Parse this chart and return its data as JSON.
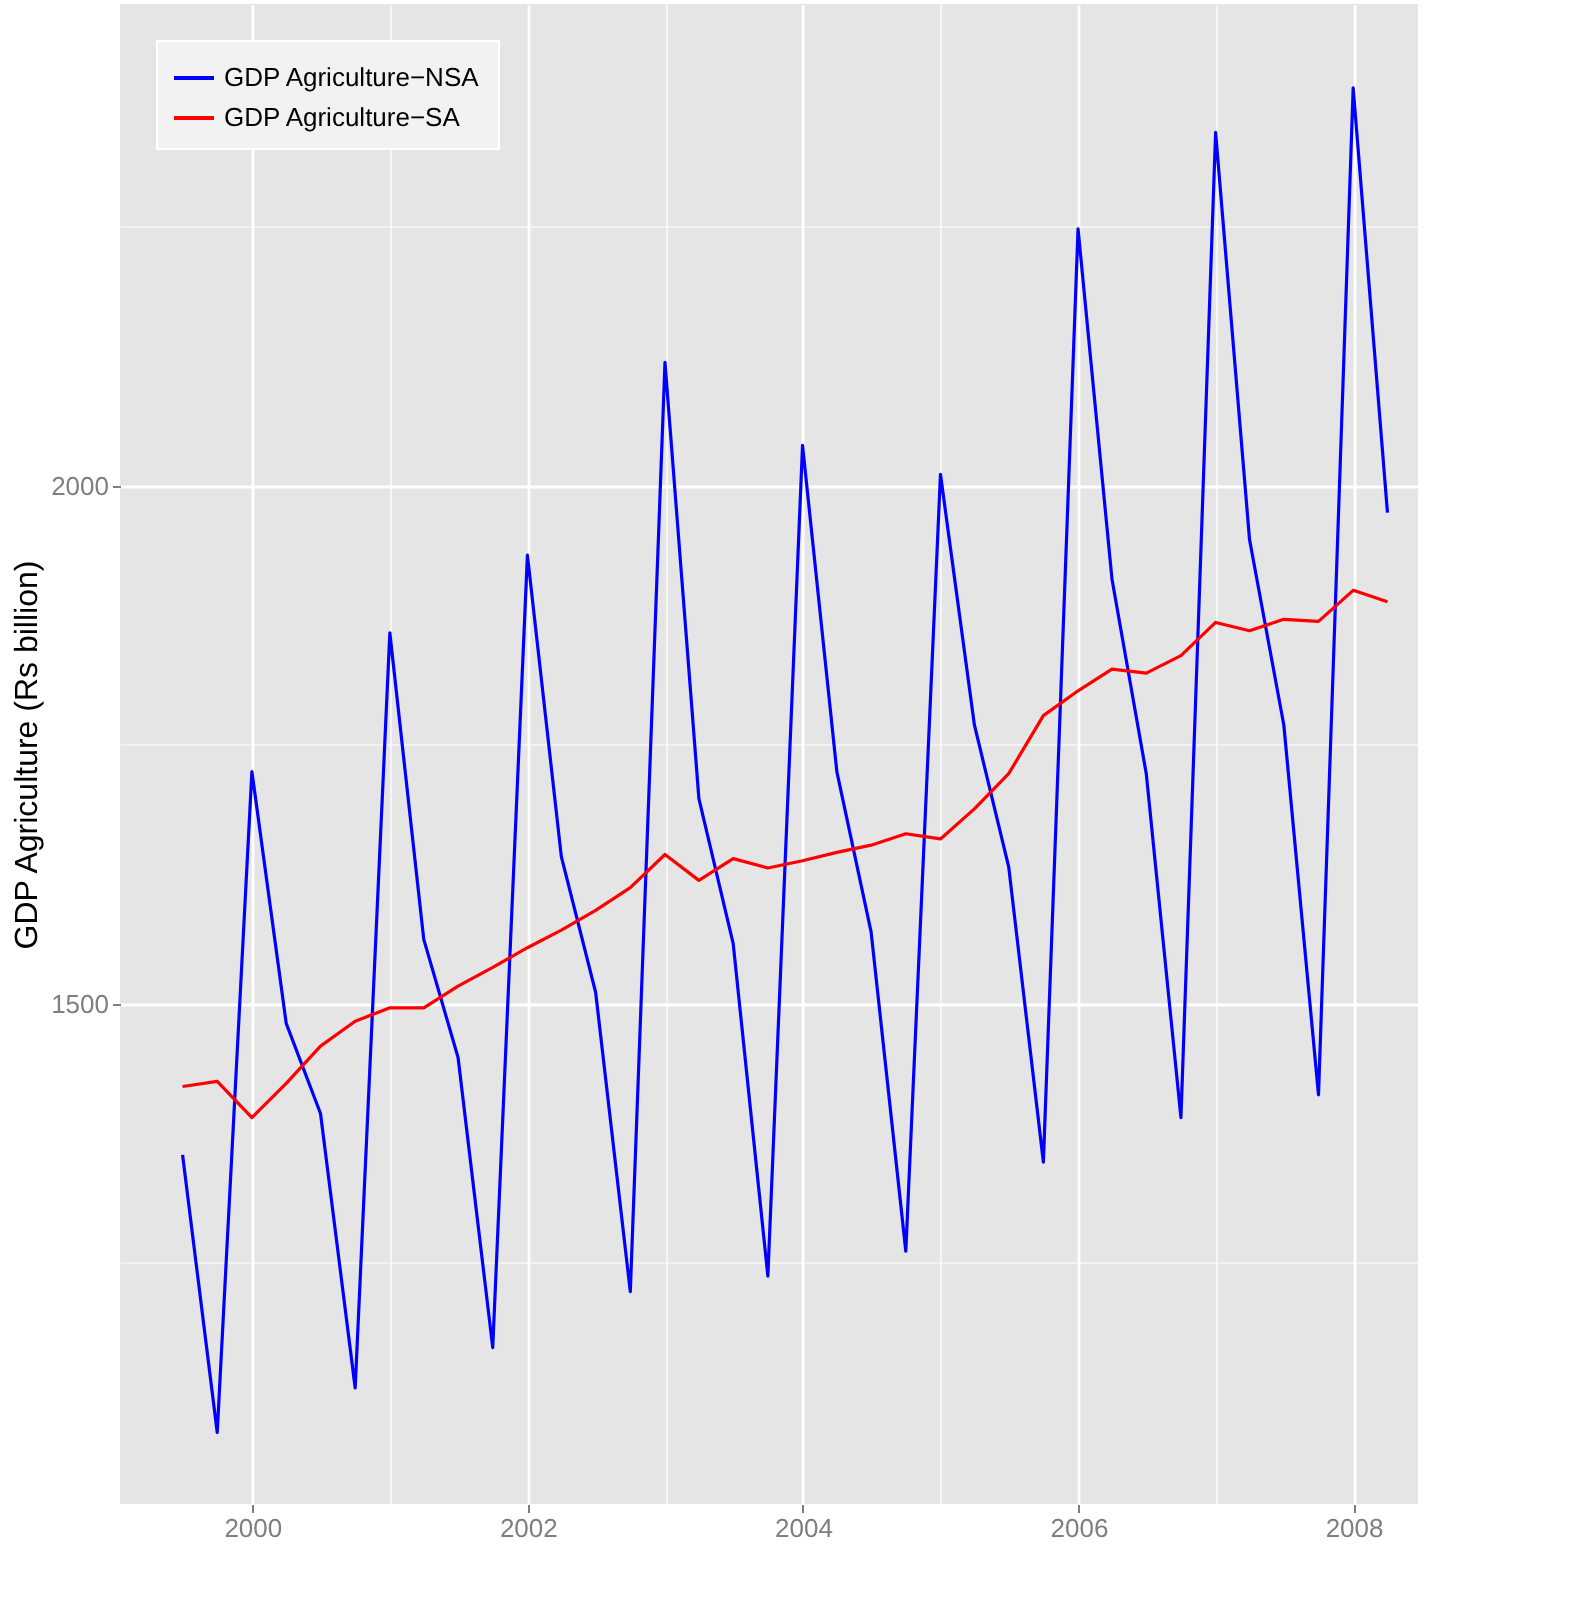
{
  "chart_data": {
    "type": "line",
    "ylabel": "GDP Agriculture (Rs billion)",
    "x": [
      "1999-06-30",
      "1999-09-30",
      "1999-12-31",
      "2000-03-31",
      "2000-06-30",
      "2000-09-30",
      "2000-12-31",
      "2001-03-31",
      "2001-06-30",
      "2001-09-30",
      "2001-12-31",
      "2002-03-31",
      "2002-06-30",
      "2002-09-30",
      "2002-12-31",
      "2003-03-31",
      "2003-06-30",
      "2003-09-30",
      "2003-12-31",
      "2004-03-31",
      "2004-06-30",
      "2004-09-30",
      "2004-12-31",
      "2005-03-31",
      "2005-06-30",
      "2005-09-30",
      "2005-12-31",
      "2006-03-31",
      "2006-06-30",
      "2006-09-30",
      "2006-12-31",
      "2007-03-31",
      "2007-06-30",
      "2007-09-30",
      "2007-12-31",
      "2008-03-31"
    ],
    "series": [
      {
        "name": "GDP Agriculture−NSA",
        "color": "#0000ff",
        "values": [
          1354,
          1086,
          1724,
          1481,
          1394,
          1129,
          1858,
          1562,
          1448,
          1168,
          1933,
          1642,
          1511,
          1222,
          2119,
          1698,
          1558,
          1237,
          2039,
          1724,
          1569,
          1261,
          2011,
          1769,
          1632,
          1347,
          2248,
          1910,
          1722,
          1390,
          2341,
          1948,
          1769,
          1412,
          2384,
          1974
        ]
      },
      {
        "name": "GDP Agriculture−SA",
        "color": "#ff0000",
        "values": [
          1420,
          1425,
          1390,
          1423,
          1459,
          1483,
          1496,
          1496,
          1517,
          1535,
          1554,
          1571,
          1590,
          1612,
          1644,
          1619,
          1640,
          1631,
          1638,
          1646,
          1653,
          1664,
          1659,
          1688,
          1722,
          1778,
          1802,
          1823,
          1819,
          1836,
          1868,
          1860,
          1871,
          1869,
          1899,
          1888
        ]
      }
    ],
    "xlim": [
      "1999-01-15",
      "2008-06-20"
    ],
    "xticks": [
      {
        "value": "2000-01-01",
        "label": "2000"
      },
      {
        "value": "2001-01-01",
        "label": null
      },
      {
        "value": "2002-01-01",
        "label": "2002"
      },
      {
        "value": "2003-01-01",
        "label": null
      },
      {
        "value": "2004-01-01",
        "label": "2004"
      },
      {
        "value": "2005-01-01",
        "label": null
      },
      {
        "value": "2006-01-01",
        "label": "2006"
      },
      {
        "value": "2007-01-01",
        "label": null
      },
      {
        "value": "2008-01-01",
        "label": "2008"
      }
    ],
    "ylim": [
      1017,
      2465
    ],
    "yticks": [
      {
        "value": 1250,
        "label": null
      },
      1500,
      {
        "value": 1750,
        "label": null
      },
      2000,
      {
        "value": 2250,
        "label": null
      }
    ],
    "grid": true,
    "legend": "top left",
    "line_style": "solid",
    "marker": "none"
  }
}
